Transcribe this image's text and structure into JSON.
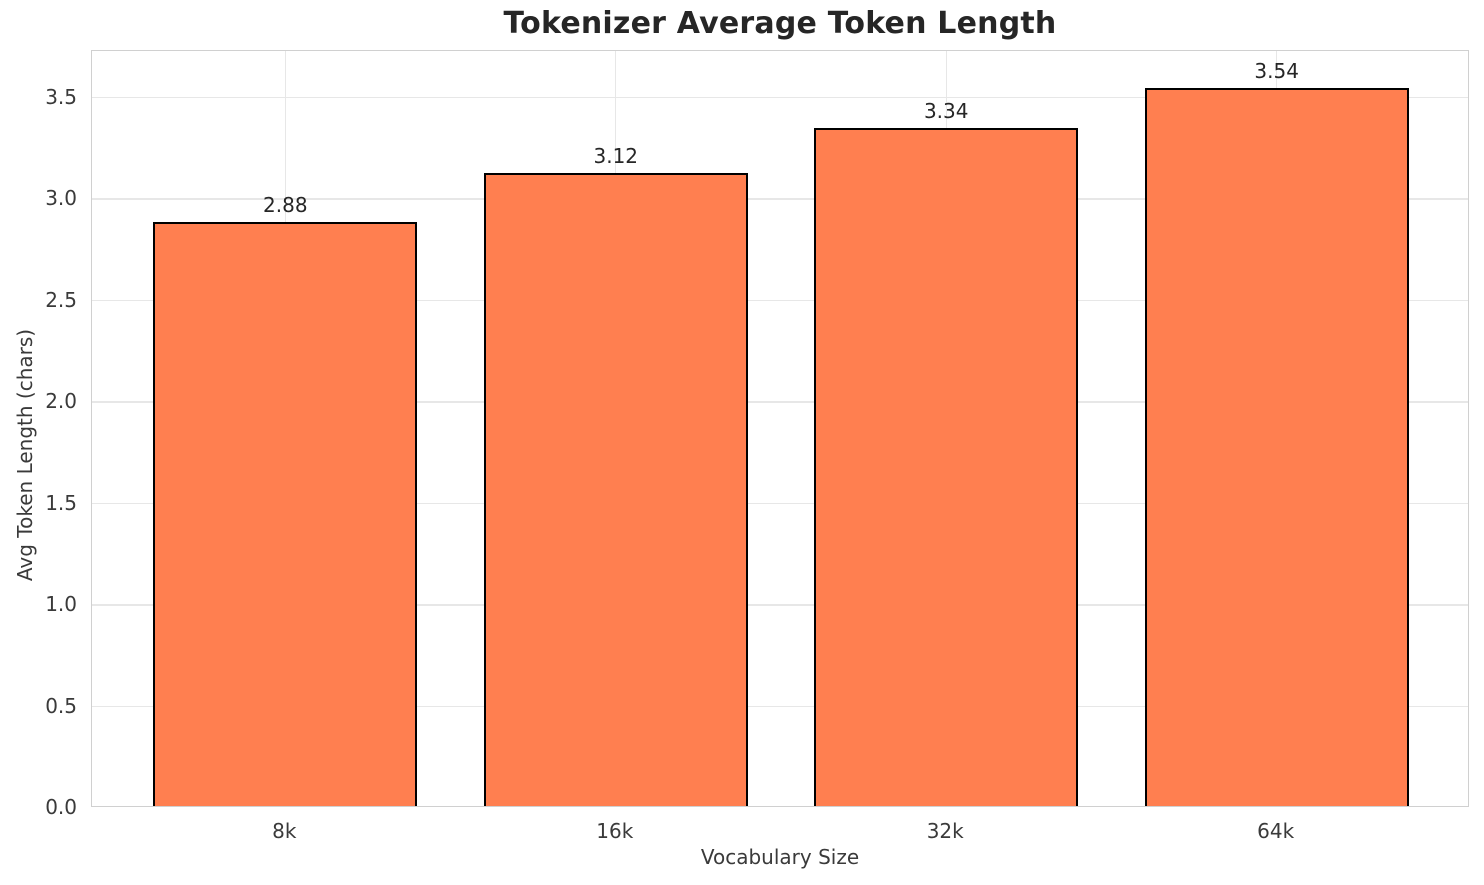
{
  "chart_data": {
    "type": "bar",
    "title": "Tokenizer Average Token Length",
    "xlabel": "Vocabulary Size",
    "ylabel": "Avg Token Length (chars)",
    "categories": [
      "8k",
      "16k",
      "32k",
      "64k"
    ],
    "values": [
      2.88,
      3.12,
      3.34,
      3.54
    ],
    "bar_labels": [
      "2.88",
      "3.12",
      "3.34",
      "3.54"
    ],
    "y_tick_labels": [
      "0.0",
      "0.5",
      "1.0",
      "1.5",
      "2.0",
      "2.5",
      "3.0",
      "3.5"
    ],
    "y_ticks": [
      0,
      0.5,
      1.0,
      1.5,
      2.0,
      2.5,
      3.0,
      3.5
    ],
    "ylim": [
      0,
      3.73
    ],
    "xlim": [
      -0.585,
      3.585
    ],
    "bar_width": 0.8,
    "grid": true,
    "legend_position": "none",
    "colors": {
      "bar_fill": "#FF7F50",
      "bar_edge": "#000000",
      "grid": "#e7e7e7",
      "spine": "#d0d0d0",
      "tick_text": "#3a3a3a",
      "title_text": "#262626",
      "background": "#ffffff"
    }
  }
}
